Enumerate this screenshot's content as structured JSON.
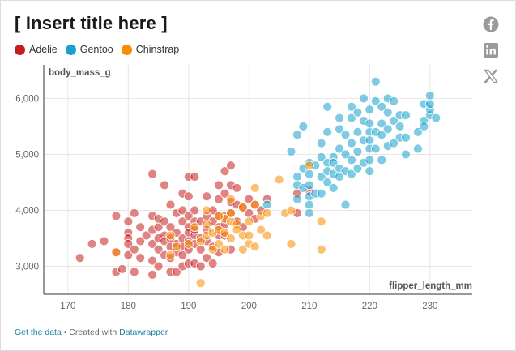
{
  "title": "[ Insert title here ]",
  "legend": [
    {
      "name": "Adelie",
      "color": "#c71e1d"
    },
    {
      "name": "Gentoo",
      "color": "#18a1cd"
    },
    {
      "name": "Chinstrap",
      "color": "#fa8c00"
    }
  ],
  "social": [
    {
      "name": "facebook-icon"
    },
    {
      "name": "linkedin-icon"
    },
    {
      "name": "x-icon"
    }
  ],
  "footer": {
    "get_data": "Get the data",
    "separator": " • Created with ",
    "created_with": "Datawrapper"
  },
  "chart_data": {
    "type": "scatter",
    "xlabel": "flipper_length_mm",
    "ylabel": "body_mass_g",
    "xlim": [
      166,
      237
    ],
    "ylim": [
      2500,
      6600
    ],
    "xticks": [
      170,
      180,
      190,
      200,
      210,
      220,
      230
    ],
    "yticks": [
      3000,
      4000,
      5000,
      6000
    ],
    "ytick_labels": [
      "3,000",
      "4,000",
      "5,000",
      "6,000"
    ],
    "grid": true,
    "series": [
      {
        "name": "Adelie",
        "color": "#c71e1d",
        "points": [
          [
            172,
            3150
          ],
          [
            174,
            3400
          ],
          [
            176,
            3450
          ],
          [
            178,
            3900
          ],
          [
            178,
            3250
          ],
          [
            178,
            2900
          ],
          [
            179,
            2950
          ],
          [
            180,
            3800
          ],
          [
            180,
            3600
          ],
          [
            180,
            3500
          ],
          [
            180,
            3400
          ],
          [
            180,
            3200
          ],
          [
            181,
            3950
          ],
          [
            181,
            3300
          ],
          [
            181,
            2900
          ],
          [
            182,
            3700
          ],
          [
            182,
            3450
          ],
          [
            182,
            3150
          ],
          [
            183,
            3550
          ],
          [
            184,
            3650
          ],
          [
            184,
            3400
          ],
          [
            184,
            3900
          ],
          [
            184,
            3100
          ],
          [
            184,
            2850
          ],
          [
            184,
            4650
          ],
          [
            185,
            3700
          ],
          [
            185,
            3850
          ],
          [
            185,
            3500
          ],
          [
            185,
            3000
          ],
          [
            185,
            3300
          ],
          [
            186,
            3800
          ],
          [
            186,
            3550
          ],
          [
            186,
            3450
          ],
          [
            186,
            3200
          ],
          [
            186,
            4450
          ],
          [
            187,
            3700
          ],
          [
            187,
            3500
          ],
          [
            187,
            3350
          ],
          [
            187,
            2900
          ],
          [
            187,
            3150
          ],
          [
            187,
            4100
          ],
          [
            188,
            3600
          ],
          [
            188,
            3400
          ],
          [
            188,
            3250
          ],
          [
            188,
            3950
          ],
          [
            188,
            2900
          ],
          [
            189,
            3800
          ],
          [
            189,
            3500
          ],
          [
            189,
            3350
          ],
          [
            189,
            3200
          ],
          [
            189,
            3000
          ],
          [
            189,
            4000
          ],
          [
            189,
            4300
          ],
          [
            190,
            3900
          ],
          [
            190,
            3700
          ],
          [
            190,
            3600
          ],
          [
            190,
            3450
          ],
          [
            190,
            3300
          ],
          [
            190,
            3050
          ],
          [
            190,
            4250
          ],
          [
            190,
            4600
          ],
          [
            191,
            4000
          ],
          [
            191,
            3800
          ],
          [
            191,
            3550
          ],
          [
            191,
            3400
          ],
          [
            191,
            3650
          ],
          [
            191,
            4600
          ],
          [
            191,
            3050
          ],
          [
            192,
            3800
          ],
          [
            192,
            3500
          ],
          [
            192,
            3300
          ],
          [
            192,
            3000
          ],
          [
            193,
            3900
          ],
          [
            193,
            3650
          ],
          [
            193,
            3450
          ],
          [
            193,
            3150
          ],
          [
            193,
            4250
          ],
          [
            194,
            4000
          ],
          [
            194,
            3800
          ],
          [
            194,
            3350
          ],
          [
            194,
            3050
          ],
          [
            195,
            4200
          ],
          [
            195,
            3900
          ],
          [
            195,
            3700
          ],
          [
            195,
            3550
          ],
          [
            195,
            3250
          ],
          [
            195,
            4450
          ],
          [
            196,
            4300
          ],
          [
            196,
            3900
          ],
          [
            196,
            3750
          ],
          [
            196,
            3550
          ],
          [
            196,
            4700
          ],
          [
            197,
            4450
          ],
          [
            197,
            4150
          ],
          [
            197,
            3950
          ],
          [
            197,
            3300
          ],
          [
            197,
            4800
          ],
          [
            198,
            4400
          ],
          [
            198,
            4100
          ],
          [
            198,
            3800
          ],
          [
            199,
            4050
          ],
          [
            199,
            3700
          ],
          [
            200,
            4200
          ],
          [
            200,
            3950
          ],
          [
            201,
            4100
          ],
          [
            201,
            3850
          ],
          [
            202,
            4000
          ],
          [
            203,
            4200
          ],
          [
            208,
            3950
          ],
          [
            208,
            4300
          ],
          [
            210,
            4350
          ]
        ]
      },
      {
        "name": "Gentoo",
        "color": "#18a1cd",
        "points": [
          [
            203,
            4100
          ],
          [
            207,
            5050
          ],
          [
            208,
            4600
          ],
          [
            208,
            4450
          ],
          [
            208,
            4200
          ],
          [
            208,
            5350
          ],
          [
            209,
            4750
          ],
          [
            209,
            4400
          ],
          [
            209,
            5500
          ],
          [
            210,
            4850
          ],
          [
            210,
            4650
          ],
          [
            210,
            4450
          ],
          [
            210,
            4250
          ],
          [
            210,
            4100
          ],
          [
            210,
            3950
          ],
          [
            211,
            4800
          ],
          [
            211,
            4300
          ],
          [
            212,
            4950
          ],
          [
            212,
            4600
          ],
          [
            212,
            4300
          ],
          [
            212,
            5200
          ],
          [
            213,
            4850
          ],
          [
            213,
            4700
          ],
          [
            213,
            4500
          ],
          [
            213,
            5400
          ],
          [
            213,
            5850
          ],
          [
            214,
            4950
          ],
          [
            214,
            4850
          ],
          [
            214,
            4650
          ],
          [
            214,
            4400
          ],
          [
            215,
            5100
          ],
          [
            215,
            4750
          ],
          [
            215,
            4600
          ],
          [
            215,
            5450
          ],
          [
            215,
            5650
          ],
          [
            216,
            5000
          ],
          [
            216,
            4700
          ],
          [
            216,
            4100
          ],
          [
            216,
            5350
          ],
          [
            217,
            4900
          ],
          [
            217,
            4650
          ],
          [
            217,
            5200
          ],
          [
            217,
            5650
          ],
          [
            217,
            5850
          ],
          [
            218,
            5050
          ],
          [
            218,
            4750
          ],
          [
            218,
            5400
          ],
          [
            218,
            5750
          ],
          [
            219,
            5250
          ],
          [
            219,
            4850
          ],
          [
            219,
            5600
          ],
          [
            219,
            6000
          ],
          [
            220,
            5400
          ],
          [
            220,
            5250
          ],
          [
            220,
            5100
          ],
          [
            220,
            4900
          ],
          [
            220,
            4700
          ],
          [
            220,
            5550
          ],
          [
            220,
            5800
          ],
          [
            221,
            5400
          ],
          [
            221,
            5100
          ],
          [
            221,
            5950
          ],
          [
            221,
            6300
          ],
          [
            222,
            5350
          ],
          [
            222,
            5550
          ],
          [
            222,
            5850
          ],
          [
            222,
            4900
          ],
          [
            223,
            5150
          ],
          [
            223,
            5450
          ],
          [
            223,
            5750
          ],
          [
            223,
            6000
          ],
          [
            224,
            5600
          ],
          [
            224,
            5950
          ],
          [
            225,
            5300
          ],
          [
            225,
            5500
          ],
          [
            225,
            5700
          ],
          [
            226,
            5300
          ],
          [
            226,
            5700
          ],
          [
            226,
            5000
          ],
          [
            228,
            5400
          ],
          [
            229,
            5600
          ],
          [
            229,
            5900
          ],
          [
            229,
            5500
          ],
          [
            230,
            5700
          ],
          [
            230,
            5800
          ],
          [
            230,
            6050
          ],
          [
            230,
            5900
          ],
          [
            231,
            5650
          ],
          [
            228,
            5100
          ],
          [
            224,
            5200
          ]
        ]
      },
      {
        "name": "Chinstrap",
        "color": "#fa8c00",
        "points": [
          [
            178,
            3250
          ],
          [
            187,
            3200
          ],
          [
            187,
            3550
          ],
          [
            188,
            3350
          ],
          [
            190,
            3400
          ],
          [
            191,
            3700
          ],
          [
            192,
            2700
          ],
          [
            192,
            3450
          ],
          [
            193,
            3550
          ],
          [
            193,
            3750
          ],
          [
            194,
            3300
          ],
          [
            194,
            3600
          ],
          [
            195,
            3650
          ],
          [
            195,
            3400
          ],
          [
            196,
            3300
          ],
          [
            196,
            3850
          ],
          [
            196,
            3600
          ],
          [
            197,
            3800
          ],
          [
            197,
            3950
          ],
          [
            197,
            3500
          ],
          [
            198,
            3750
          ],
          [
            198,
            3650
          ],
          [
            199,
            3550
          ],
          [
            199,
            3300
          ],
          [
            199,
            4050
          ],
          [
            200,
            3400
          ],
          [
            200,
            3550
          ],
          [
            200,
            3800
          ],
          [
            201,
            3350
          ],
          [
            201,
            4100
          ],
          [
            201,
            4400
          ],
          [
            202,
            3650
          ],
          [
            202,
            3900
          ],
          [
            203,
            3950
          ],
          [
            203,
            3550
          ],
          [
            205,
            4550
          ],
          [
            206,
            3950
          ],
          [
            207,
            4000
          ],
          [
            207,
            3400
          ],
          [
            210,
            4800
          ],
          [
            212,
            3800
          ],
          [
            212,
            3300
          ],
          [
            195,
            3900
          ],
          [
            193,
            4000
          ],
          [
            197,
            4200
          ]
        ]
      }
    ]
  }
}
